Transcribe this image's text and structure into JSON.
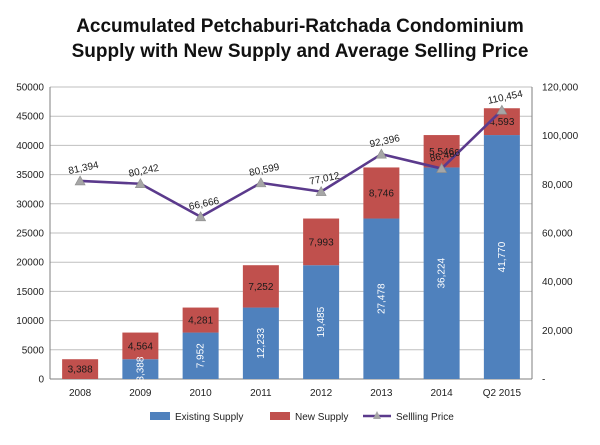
{
  "chart_data": {
    "type": "bar",
    "stacked": true,
    "title_lines": [
      "Accumulated Petchaburi-Ratchada Condominium",
      "Supply with New Supply and Average Selling Price"
    ],
    "categories": [
      "2008",
      "2009",
      "2010",
      "2011",
      "2012",
      "2013",
      "2014",
      "Q2 2015"
    ],
    "series": [
      {
        "name": "Existing Supply",
        "color": "#4f81bd",
        "values": [
          0,
          3388,
          7952,
          12233,
          19485,
          27478,
          36224,
          41770
        ],
        "labels": [
          "",
          "3,388",
          "7,952",
          "12,233",
          "19,485",
          "27,478",
          "36,224",
          "41,770"
        ]
      },
      {
        "name": "New Supply",
        "color": "#c0504d",
        "values": [
          3388,
          4564,
          4281,
          7252,
          7993,
          8746,
          5546,
          4593
        ],
        "labels": [
          "3,388",
          "4,564",
          "4,281",
          "7,252",
          "7,993",
          "8,746",
          "5,546",
          "4,593"
        ]
      }
    ],
    "line_series": {
      "name": "Sellling Price",
      "color": "#5b3a8c",
      "marker_color": "#a6a6a6",
      "axis": "right",
      "values": [
        81394,
        80242,
        66666,
        80599,
        77012,
        92396,
        86486,
        110454
      ],
      "labels": [
        "81,394",
        "80,242",
        "66,666",
        "80,599",
        "77,012",
        "92,396",
        "86,486",
        "110,454"
      ]
    },
    "y_left": {
      "min": 0,
      "max": 50000,
      "ticks": [
        "0",
        "5000",
        "10000",
        "15000",
        "20000",
        "25000",
        "30000",
        "35000",
        "40000",
        "45000",
        "50000"
      ]
    },
    "y_right": {
      "min": 0,
      "max": 120000,
      "ticks": [
        "-",
        "20,000",
        "40,000",
        "60,000",
        "80,000",
        "100,000",
        "120,000"
      ]
    },
    "grid": true,
    "legend_position": "bottom"
  }
}
